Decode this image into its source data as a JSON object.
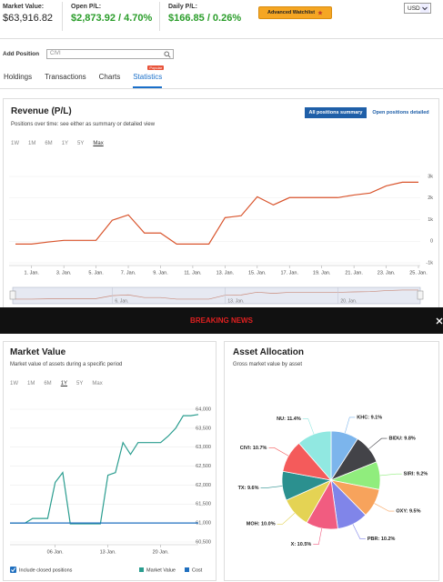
{
  "header": {
    "market_value_label": "Market Value:",
    "market_value": "$63,916.82",
    "open_pl_label": "Open P/L:",
    "open_pl": "$2,873.92 / 4.70%",
    "daily_pl_label": "Daily P/L:",
    "daily_pl": "$166.85 / 0.26%",
    "watchlist_button": "Advanced Watchlist",
    "currency": "USD"
  },
  "add_position": {
    "label": "Add Position",
    "input": "CIVI"
  },
  "tabs": {
    "items": [
      "Holdings",
      "Transactions",
      "Charts",
      "Statistics"
    ],
    "active": 3,
    "badge": "Popular"
  },
  "revenue": {
    "title": "Revenue (P/L)",
    "subtitle": "Positions over time: see either as summary or detailed view",
    "buttons": [
      "All positions summary",
      "Open positions detailed"
    ],
    "active_button": 0,
    "ranges": [
      "1W",
      "1M",
      "6M",
      "1Y",
      "5Y",
      "Max"
    ],
    "active_range": 5,
    "chart_data": {
      "type": "line",
      "color": "#d9542c",
      "grid": true,
      "x": [
        0,
        1,
        2,
        3,
        4,
        5,
        6,
        7,
        8,
        9,
        10,
        11,
        12,
        13,
        14,
        15,
        16,
        17,
        18,
        19,
        20,
        21,
        22,
        23,
        24,
        25
      ],
      "values": [
        -130,
        -130,
        -40,
        40,
        40,
        40,
        970,
        1220,
        380,
        380,
        -130,
        -130,
        -130,
        1090,
        1180,
        2060,
        1680,
        2020,
        2020,
        2020,
        2020,
        2140,
        2230,
        2560,
        2730,
        2730
      ],
      "xlim": [
        0,
        25
      ],
      "xticks": [
        {
          "value": 1,
          "label": "1. Jan."
        },
        {
          "value": 3,
          "label": "3. Jan."
        },
        {
          "value": 5,
          "label": "5. Jan."
        },
        {
          "value": 7,
          "label": "7. Jan."
        },
        {
          "value": 9,
          "label": "9. Jan."
        },
        {
          "value": 11,
          "label": "11. Jan."
        },
        {
          "value": 13,
          "label": "13. Jan."
        },
        {
          "value": 15,
          "label": "15. Jan."
        },
        {
          "value": 17,
          "label": "17. Jan."
        },
        {
          "value": 19,
          "label": "19. Jan."
        },
        {
          "value": 21,
          "label": "21. Jan."
        },
        {
          "value": 23,
          "label": "23. Jan."
        },
        {
          "value": 25,
          "label": "25. Jan."
        }
      ],
      "ylim": [
        -1000,
        3000
      ],
      "yticks": [
        {
          "value": -1000,
          "label": "-1k"
        },
        0,
        {
          "value": 1000,
          "label": "1k"
        },
        {
          "value": 2000,
          "label": "2k"
        },
        {
          "value": 3000,
          "label": "3k"
        }
      ]
    },
    "navigator_ticks": [
      {
        "value": 6,
        "label": "6. Jan."
      },
      {
        "value": 13,
        "label": "13. Jan."
      },
      {
        "value": 20,
        "label": "20. Jan."
      }
    ]
  },
  "breaking_news": {
    "text": "BREAKING NEWS"
  },
  "market_value": {
    "title": "Market Value",
    "subtitle": "Market value of assets during a specific period",
    "ranges": [
      "1W",
      "1M",
      "6M",
      "1Y",
      "5Y",
      "Max"
    ],
    "active_range": 3,
    "closed_positions_label": "Include closed positions",
    "chart_data": {
      "type": "line",
      "grid": true,
      "x": [
        0,
        1,
        2,
        3,
        4,
        5,
        6,
        7,
        8,
        9,
        10,
        11,
        12,
        13,
        14,
        15,
        16,
        17,
        18,
        19,
        20,
        21,
        22,
        23,
        24,
        25
      ],
      "xlim": [
        0,
        25
      ],
      "xticks": [
        {
          "value": 6,
          "label": "06 Jan."
        },
        {
          "value": 13,
          "label": "13 Jan."
        },
        {
          "value": 20,
          "label": "20 Jan."
        }
      ],
      "ylim": [
        60500,
        64000
      ],
      "yticks": [
        {
          "value": 60500,
          "label": "60,500"
        },
        {
          "value": 61000,
          "label": "61,000"
        },
        {
          "value": 61500,
          "label": "61,500"
        },
        {
          "value": 62000,
          "label": "62,000"
        },
        {
          "value": 62500,
          "label": "62,500"
        },
        {
          "value": 63000,
          "label": "63,000"
        },
        {
          "value": 63500,
          "label": "63,500"
        },
        {
          "value": 64000,
          "label": "64,000"
        }
      ],
      "series": [
        {
          "name": "Market Value",
          "color": "#2a9d8f",
          "values": [
            61000,
            61000,
            61000,
            61120,
            61120,
            61120,
            62070,
            62330,
            60980,
            60980,
            60980,
            60980,
            60980,
            62260,
            62330,
            63120,
            62810,
            63120,
            63120,
            63120,
            63120,
            63290,
            63500,
            63830,
            63830,
            63860
          ]
        },
        {
          "name": "Cost",
          "color": "#1f6fbf",
          "values": [
            61000,
            61000,
            61000,
            61000,
            61000,
            61000,
            61000,
            61000,
            61000,
            61000,
            61000,
            61000,
            61000,
            61000,
            61000,
            61000,
            61000,
            61000,
            61000,
            61000,
            61000,
            61000,
            61000,
            61000,
            61000,
            61000
          ]
        }
      ]
    }
  },
  "allocation": {
    "title": "Asset Allocation",
    "subtitle": "Gross market value by asset",
    "chart_data": {
      "type": "pie",
      "values": [
        9.1,
        9.8,
        9.2,
        9.5,
        10.2,
        10.5,
        10.0,
        9.6,
        10.7,
        11.4
      ],
      "value_labels": [
        "KHC: 9.1%",
        "BIDU: 9.8%",
        "SIRI: 9.2%",
        "OXY: 9.5%",
        "PBR: 10.2%",
        "X: 10.5%",
        "MOH: 10.0%",
        "TX: 9.6%",
        "CIVI: 10.7%",
        "NU: 11.4%"
      ],
      "colors": [
        "#7cb5ec",
        "#434348",
        "#90ed7d",
        "#f7a35c",
        "#8085e9",
        "#f15c80",
        "#e4d354",
        "#2b908f",
        "#f45b5b",
        "#91e8e1"
      ]
    }
  }
}
